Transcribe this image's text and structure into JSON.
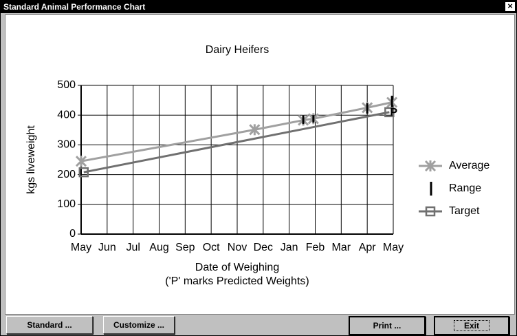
{
  "window": {
    "title": "Standard Animal Performance Chart",
    "close": "×"
  },
  "chart_data": {
    "type": "line",
    "title": "Dairy Heifers",
    "xlabel": "Date of Weighing",
    "xlabel2": "('P' marks Predicted Weights)",
    "ylabel": "kgs liveweight",
    "xlim": [
      0,
      12
    ],
    "xticks": [
      {
        "value": 0,
        "label": "May"
      },
      {
        "value": 1,
        "label": "Jun"
      },
      {
        "value": 2,
        "label": "Jul"
      },
      {
        "value": 3,
        "label": "Aug"
      },
      {
        "value": 4,
        "label": "Sep"
      },
      {
        "value": 5,
        "label": "Oct"
      },
      {
        "value": 6,
        "label": "Nov"
      },
      {
        "value": 7,
        "label": "Dec"
      },
      {
        "value": 8,
        "label": "Jan"
      },
      {
        "value": 9,
        "label": "Feb"
      },
      {
        "value": 10,
        "label": "Mar"
      },
      {
        "value": 11,
        "label": "Apr"
      },
      {
        "value": 12,
        "label": "May"
      }
    ],
    "ylim": [
      0,
      500
    ],
    "yticks": [
      0,
      100,
      200,
      300,
      400,
      500
    ],
    "grid": true,
    "series": [
      {
        "name": "Average",
        "color": "#a0a0a0",
        "marker": "x",
        "x": [
          0,
          6.67,
          8.54,
          8.93,
          11.0,
          11.95
        ],
        "values": [
          245,
          351,
          383,
          388,
          425,
          443
        ]
      },
      {
        "name": "Range",
        "color": "#000000",
        "x": [
          8.54,
          8.93,
          11.0,
          11.95
        ],
        "low": [
          370,
          375,
          405,
          410
        ],
        "high": [
          400,
          400,
          440,
          465
        ]
      },
      {
        "name": "Target",
        "color": "#707070",
        "marker": "square",
        "x": [
          0.1,
          11.85
        ],
        "values": [
          208,
          410
        ]
      }
    ],
    "annotations": [
      {
        "text": "P",
        "x": 11.85,
        "y": 410
      }
    ]
  },
  "buttons": [
    "Standard ...",
    "Customize ...",
    "Exit",
    "Print ..."
  ]
}
